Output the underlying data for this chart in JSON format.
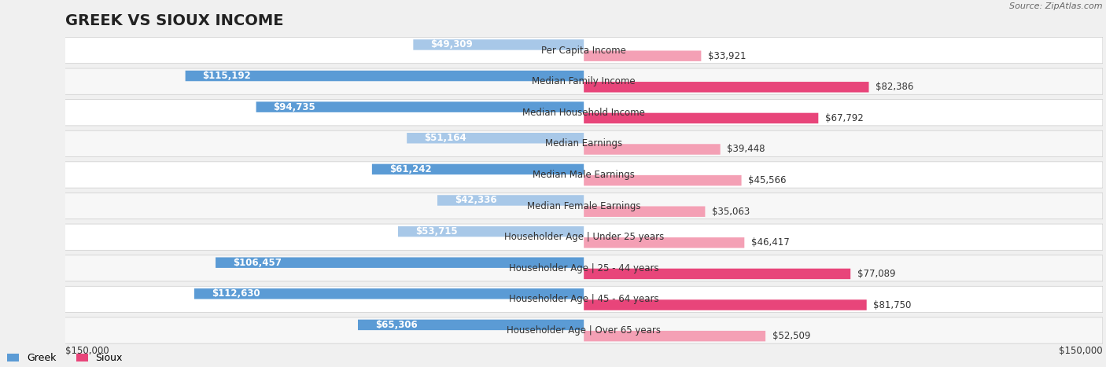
{
  "title": "GREEK VS SIOUX INCOME",
  "source": "Source: ZipAtlas.com",
  "categories": [
    "Per Capita Income",
    "Median Family Income",
    "Median Household Income",
    "Median Earnings",
    "Median Male Earnings",
    "Median Female Earnings",
    "Householder Age | Under 25 years",
    "Householder Age | 25 - 44 years",
    "Householder Age | 45 - 64 years",
    "Householder Age | Over 65 years"
  ],
  "greek_values": [
    49309,
    115192,
    94735,
    51164,
    61242,
    42336,
    53715,
    106457,
    112630,
    65306
  ],
  "sioux_values": [
    33921,
    82386,
    67792,
    39448,
    45566,
    35063,
    46417,
    77089,
    81750,
    52509
  ],
  "greek_labels": [
    "$49,309",
    "$115,192",
    "$94,735",
    "$51,164",
    "$61,242",
    "$42,336",
    "$53,715",
    "$106,457",
    "$112,630",
    "$65,306"
  ],
  "sioux_labels": [
    "$33,921",
    "$82,386",
    "$67,792",
    "$39,448",
    "$45,566",
    "$35,063",
    "$46,417",
    "$77,089",
    "$81,750",
    "$52,509"
  ],
  "max_value": 150000,
  "greek_color_low": "#a8c8e8",
  "greek_color_high": "#5b9bd5",
  "sioux_color_low": "#f4a0b5",
  "sioux_color_high": "#e8457a",
  "bg_color": "#f0f0f0",
  "row_bg": "#ffffff",
  "alt_row_bg": "#f7f7f7",
  "title_fontsize": 14,
  "label_fontsize": 8.5,
  "legend_fontsize": 9,
  "source_fontsize": 8
}
